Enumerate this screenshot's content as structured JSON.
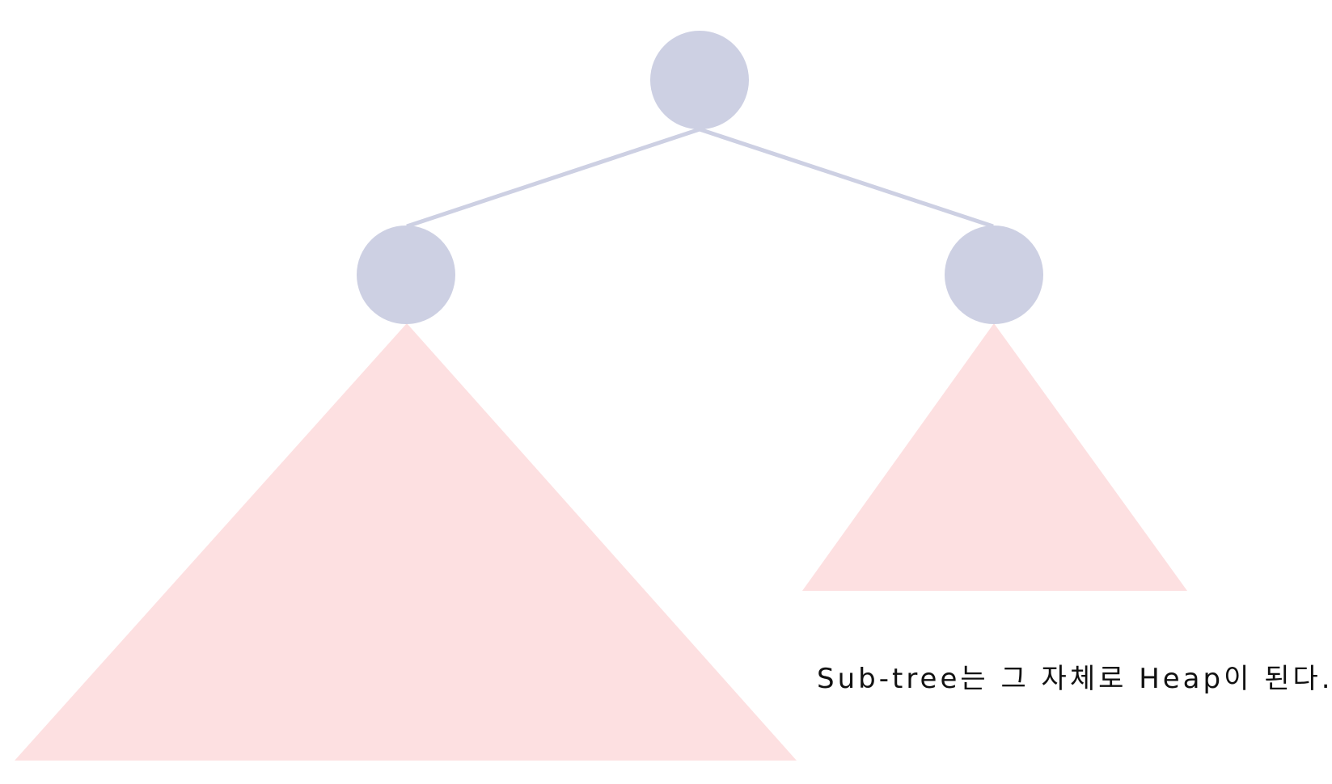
{
  "caption": "Sub-tree는 그 자체로 Heap이 된다.",
  "colors": {
    "node": "#cdd0e3",
    "edge": "#cdd0e3",
    "subtree": "#fde0e1",
    "text": "#111111",
    "background": "#ffffff"
  }
}
